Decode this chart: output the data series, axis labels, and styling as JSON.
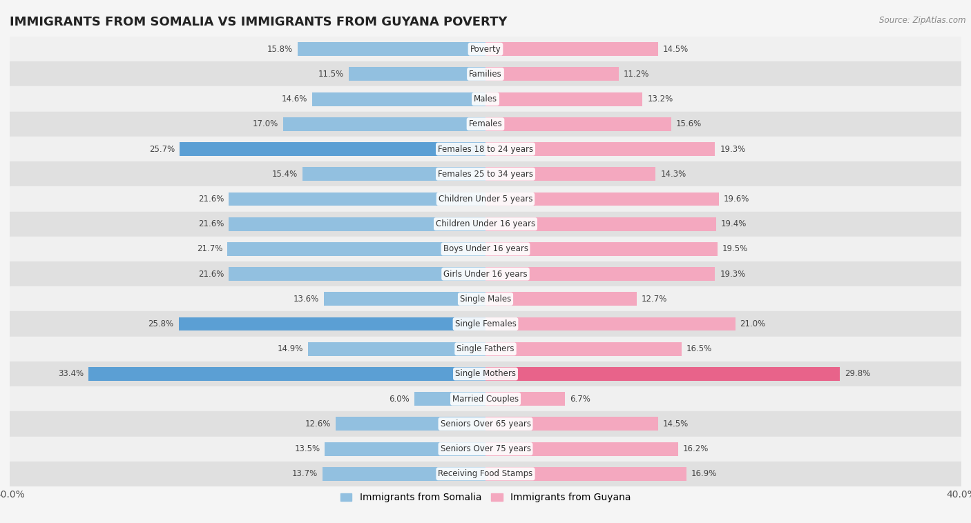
{
  "title": "IMMIGRANTS FROM SOMALIA VS IMMIGRANTS FROM GUYANA POVERTY",
  "source": "Source: ZipAtlas.com",
  "categories": [
    "Poverty",
    "Families",
    "Males",
    "Females",
    "Females 18 to 24 years",
    "Females 25 to 34 years",
    "Children Under 5 years",
    "Children Under 16 years",
    "Boys Under 16 years",
    "Girls Under 16 years",
    "Single Males",
    "Single Females",
    "Single Fathers",
    "Single Mothers",
    "Married Couples",
    "Seniors Over 65 years",
    "Seniors Over 75 years",
    "Receiving Food Stamps"
  ],
  "somalia_values": [
    15.8,
    11.5,
    14.6,
    17.0,
    25.7,
    15.4,
    21.6,
    21.6,
    21.7,
    21.6,
    13.6,
    25.8,
    14.9,
    33.4,
    6.0,
    12.6,
    13.5,
    13.7
  ],
  "guyana_values": [
    14.5,
    11.2,
    13.2,
    15.6,
    19.3,
    14.3,
    19.6,
    19.4,
    19.5,
    19.3,
    12.7,
    21.0,
    16.5,
    29.8,
    6.7,
    14.5,
    16.2,
    16.9
  ],
  "somalia_color": "#92C0E0",
  "guyana_color": "#F4A8BF",
  "highlight_somalia": [
    4,
    11,
    13
  ],
  "highlight_guyana": [
    13
  ],
  "highlight_somalia_color": "#5B9FD4",
  "highlight_guyana_color": "#E8638A",
  "background_color": "#f5f5f5",
  "row_color_light": "#f0f0f0",
  "row_color_dark": "#e0e0e0",
  "xlim": 40.0,
  "legend_somalia": "Immigrants from Somalia",
  "legend_guyana": "Immigrants from Guyana"
}
